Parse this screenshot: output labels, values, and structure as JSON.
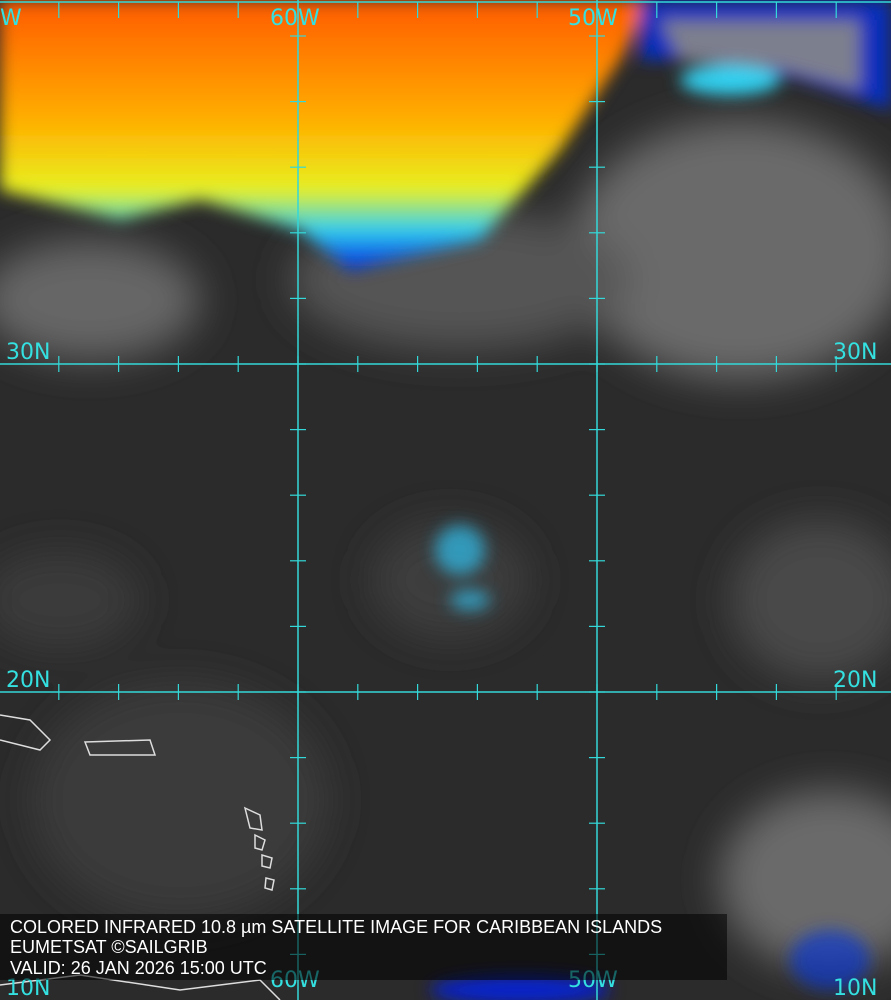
{
  "caption": {
    "title": "COLORED INFRARED 10.8 µm SATELLITE IMAGE FOR CARIBBEAN ISLANDS",
    "credit": "EUMETSAT ©SAILGRIB",
    "valid": "VALID:  26 JAN 2026 15:00 UTC"
  },
  "grid": {
    "top_labels": [
      "W",
      "60W",
      "50W"
    ],
    "bottom_labels": [
      "60W",
      "50W"
    ],
    "left_labels": [
      "30N",
      "20N",
      "10N"
    ],
    "right_labels": [
      "30N",
      "20N",
      "10N"
    ]
  },
  "colors": {
    "grid": "#34e0e0",
    "cold_cloud": "#ff6a00",
    "mid_cloud": "#ffe000",
    "low_cloud": "#00c0ff",
    "deep_blue": "#0018e0"
  }
}
